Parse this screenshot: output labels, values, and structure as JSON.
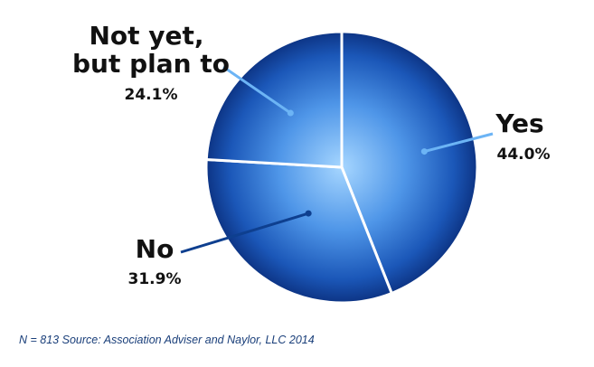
{
  "chart_data": {
    "type": "pie",
    "slices": [
      {
        "name": "Yes",
        "value": 44.0,
        "label": "44.0%"
      },
      {
        "name": "No",
        "value": 31.9,
        "label": "31.9%"
      },
      {
        "name_lines": [
          "Not yet,",
          "but plan to"
        ],
        "value": 24.1,
        "label": "24.1%"
      }
    ],
    "colors": {
      "light": "#9fd0ff",
      "mid": "#2f78d6",
      "dark": "#0a2d7a",
      "leader_light": "#6cb4f5",
      "leader_dark": "#0e3f8f"
    }
  },
  "footer": {
    "source": "N = 813 Source: Association Adviser and Naylor, LLC 2014"
  }
}
